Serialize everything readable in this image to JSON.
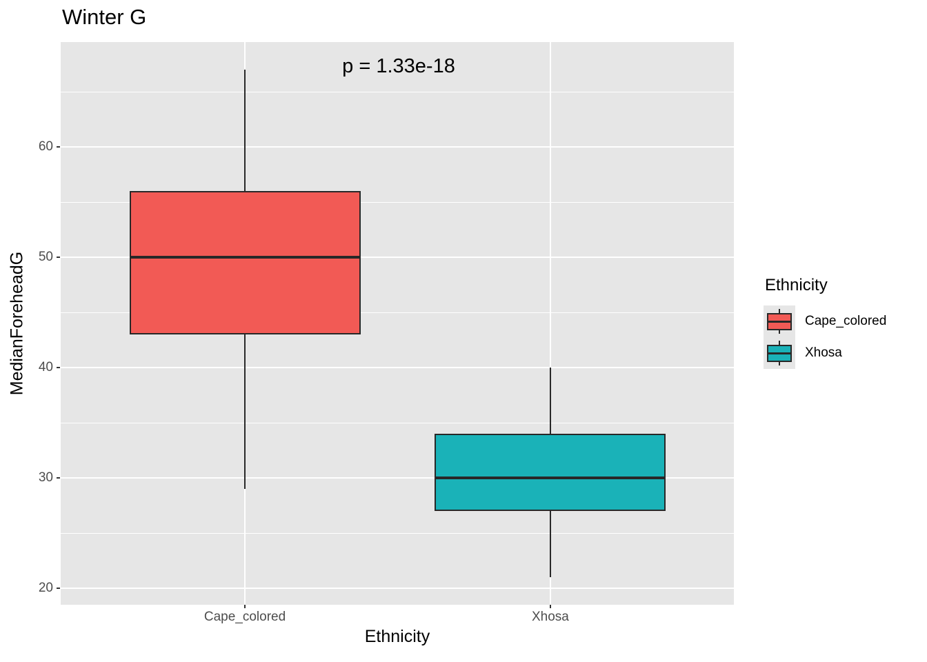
{
  "chart_data": {
    "type": "boxplot",
    "title": "Winter G",
    "annotation": "p = 1.33e-18",
    "xlabel": "Ethnicity",
    "ylabel": "MedianForeheadG",
    "legend_title": "Ethnicity",
    "categories": [
      "Cape_colored",
      "Xhosa"
    ],
    "series": [
      {
        "label": "Cape_colored",
        "color": "#F25A55",
        "whisker_low": 29,
        "q1": 43,
        "median": 50,
        "q3": 56,
        "whisker_high": 67
      },
      {
        "label": "Xhosa",
        "color": "#1AB2B8",
        "whisker_low": 21,
        "q1": 27,
        "median": 30,
        "q3": 34,
        "whisker_high": 40
      }
    ],
    "y_ticks": [
      20,
      30,
      40,
      50,
      60
    ],
    "y_minor_ticks": [
      25,
      35,
      45,
      55,
      65
    ],
    "ylim": [
      18.5,
      69.5
    ],
    "grid": true,
    "legend_position": "right",
    "colors": {
      "panel_bg": "#E6E6E6",
      "gridline": "#FFFFFF",
      "box_border": "#282828",
      "axis_text": "#4D4D4D",
      "tick_mark": "#333333",
      "legend_key_bg": "#E6E6E6"
    }
  }
}
